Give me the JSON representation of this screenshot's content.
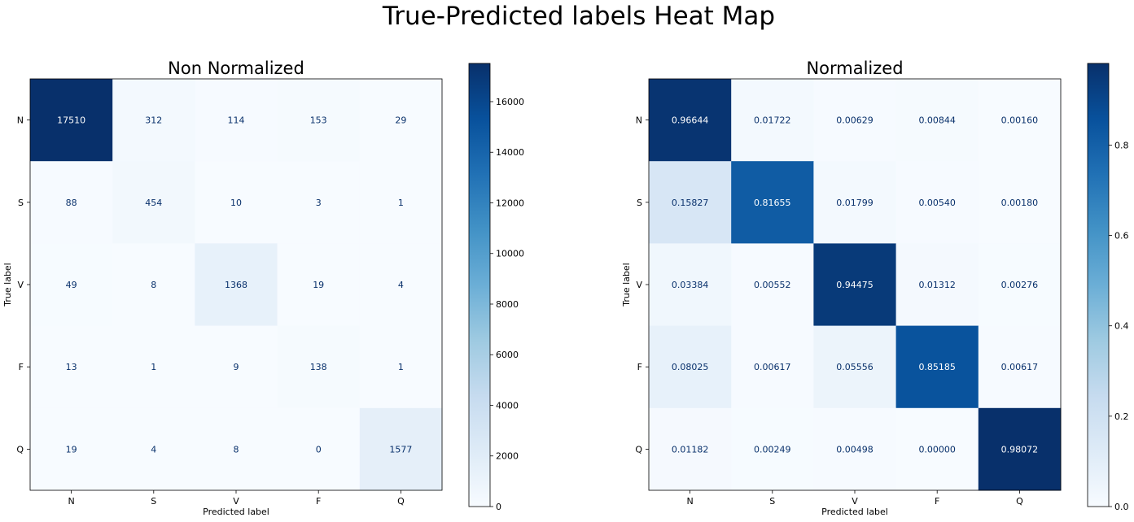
{
  "figure": {
    "title": "True-Predicted labels Heat Map"
  },
  "chart_data": [
    {
      "type": "heatmap",
      "title": "Non Normalized",
      "xlabel": "Predicted label",
      "ylabel": "True label",
      "x_categories": [
        "N",
        "S",
        "V",
        "F",
        "Q"
      ],
      "y_categories": [
        "N",
        "S",
        "V",
        "F",
        "Q"
      ],
      "values": [
        [
          17510,
          312,
          114,
          153,
          29
        ],
        [
          88,
          454,
          10,
          3,
          1
        ],
        [
          49,
          8,
          1368,
          19,
          4
        ],
        [
          13,
          1,
          9,
          138,
          1
        ],
        [
          19,
          4,
          8,
          0,
          1577
        ]
      ],
      "cell_labels": [
        [
          "17510",
          "312",
          "114",
          "153",
          "29"
        ],
        [
          "88",
          "454",
          "10",
          "3",
          "1"
        ],
        [
          "49",
          "8",
          "1368",
          "19",
          "4"
        ],
        [
          "13",
          "1",
          "9",
          "138",
          "1"
        ],
        [
          "19",
          "4",
          "8",
          "0",
          "1577"
        ]
      ],
      "colormap": "Blues",
      "colorbar": {
        "min": 0,
        "max": 17510,
        "ticks": [
          0,
          2000,
          4000,
          6000,
          8000,
          10000,
          12000,
          14000,
          16000
        ],
        "tick_labels": [
          "0",
          "2000",
          "4000",
          "6000",
          "8000",
          "10000",
          "12000",
          "14000",
          "16000"
        ]
      }
    },
    {
      "type": "heatmap",
      "title": "Normalized",
      "xlabel": "Predicted label",
      "ylabel": "True label",
      "x_categories": [
        "N",
        "S",
        "V",
        "F",
        "Q"
      ],
      "y_categories": [
        "N",
        "S",
        "V",
        "F",
        "Q"
      ],
      "values": [
        [
          0.96644,
          0.01722,
          0.00629,
          0.00844,
          0.0016
        ],
        [
          0.15827,
          0.81655,
          0.01799,
          0.0054,
          0.0018
        ],
        [
          0.03384,
          0.00552,
          0.94475,
          0.01312,
          0.00276
        ],
        [
          0.08025,
          0.00617,
          0.05556,
          0.85185,
          0.00617
        ],
        [
          0.01182,
          0.00249,
          0.00498,
          0.0,
          0.98072
        ]
      ],
      "cell_labels": [
        [
          "0.96644",
          "0.01722",
          "0.00629",
          "0.00844",
          "0.00160"
        ],
        [
          "0.15827",
          "0.81655",
          "0.01799",
          "0.00540",
          "0.00180"
        ],
        [
          "0.03384",
          "0.00552",
          "0.94475",
          "0.01312",
          "0.00276"
        ],
        [
          "0.08025",
          "0.00617",
          "0.05556",
          "0.85185",
          "0.00617"
        ],
        [
          "0.01182",
          "0.00249",
          "0.00498",
          "0.00000",
          "0.98072"
        ]
      ],
      "colormap": "Blues",
      "colorbar": {
        "min": 0,
        "max": 0.98072,
        "ticks": [
          0.0,
          0.2,
          0.4,
          0.6,
          0.8
        ],
        "tick_labels": [
          "0.0",
          "0.2",
          "0.4",
          "0.6",
          "0.8"
        ]
      }
    }
  ]
}
